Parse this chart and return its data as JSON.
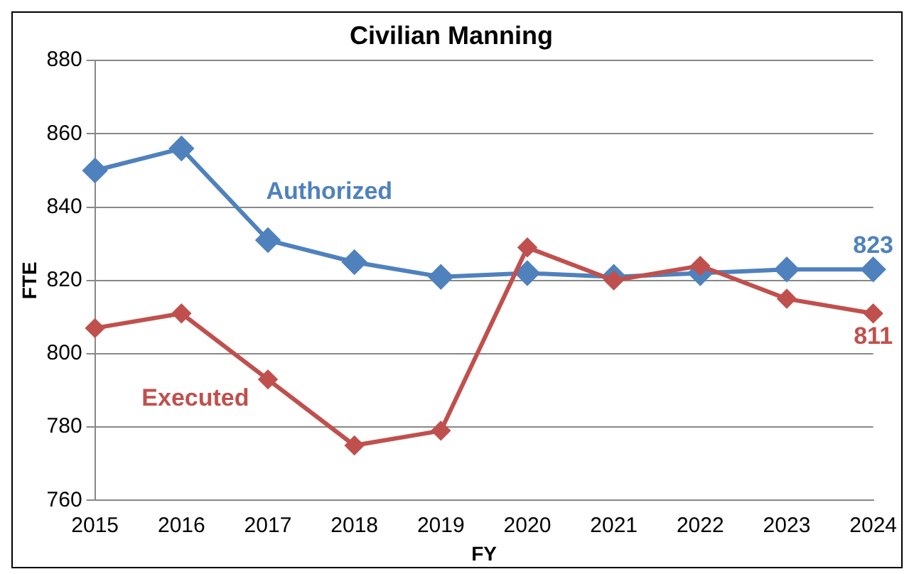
{
  "chart_data": {
    "type": "line",
    "title": "Civilian Manning",
    "xlabel": "FY",
    "ylabel": "FTE",
    "categories": [
      "2015",
      "2016",
      "2017",
      "2018",
      "2019",
      "2020",
      "2021",
      "2022",
      "2023",
      "2024"
    ],
    "series": [
      {
        "name": "Authorized",
        "color": "#4f81bd",
        "values": [
          850,
          856,
          831,
          825,
          821,
          822,
          821,
          822,
          823,
          823
        ],
        "value_labels": [
          null,
          null,
          null,
          null,
          null,
          null,
          null,
          null,
          null,
          "823"
        ]
      },
      {
        "name": "Executed",
        "color": "#c0504d",
        "values": [
          807,
          811,
          793,
          775,
          779,
          829,
          820,
          824,
          815,
          811
        ],
        "value_labels": [
          null,
          null,
          null,
          null,
          null,
          null,
          null,
          null,
          null,
          "811"
        ]
      }
    ],
    "ylim": [
      760,
      880
    ],
    "yticks": [
      760,
      780,
      800,
      820,
      840,
      860,
      880
    ],
    "grid": "y",
    "marker": "diamond",
    "line_style": "solid",
    "legend": false
  }
}
